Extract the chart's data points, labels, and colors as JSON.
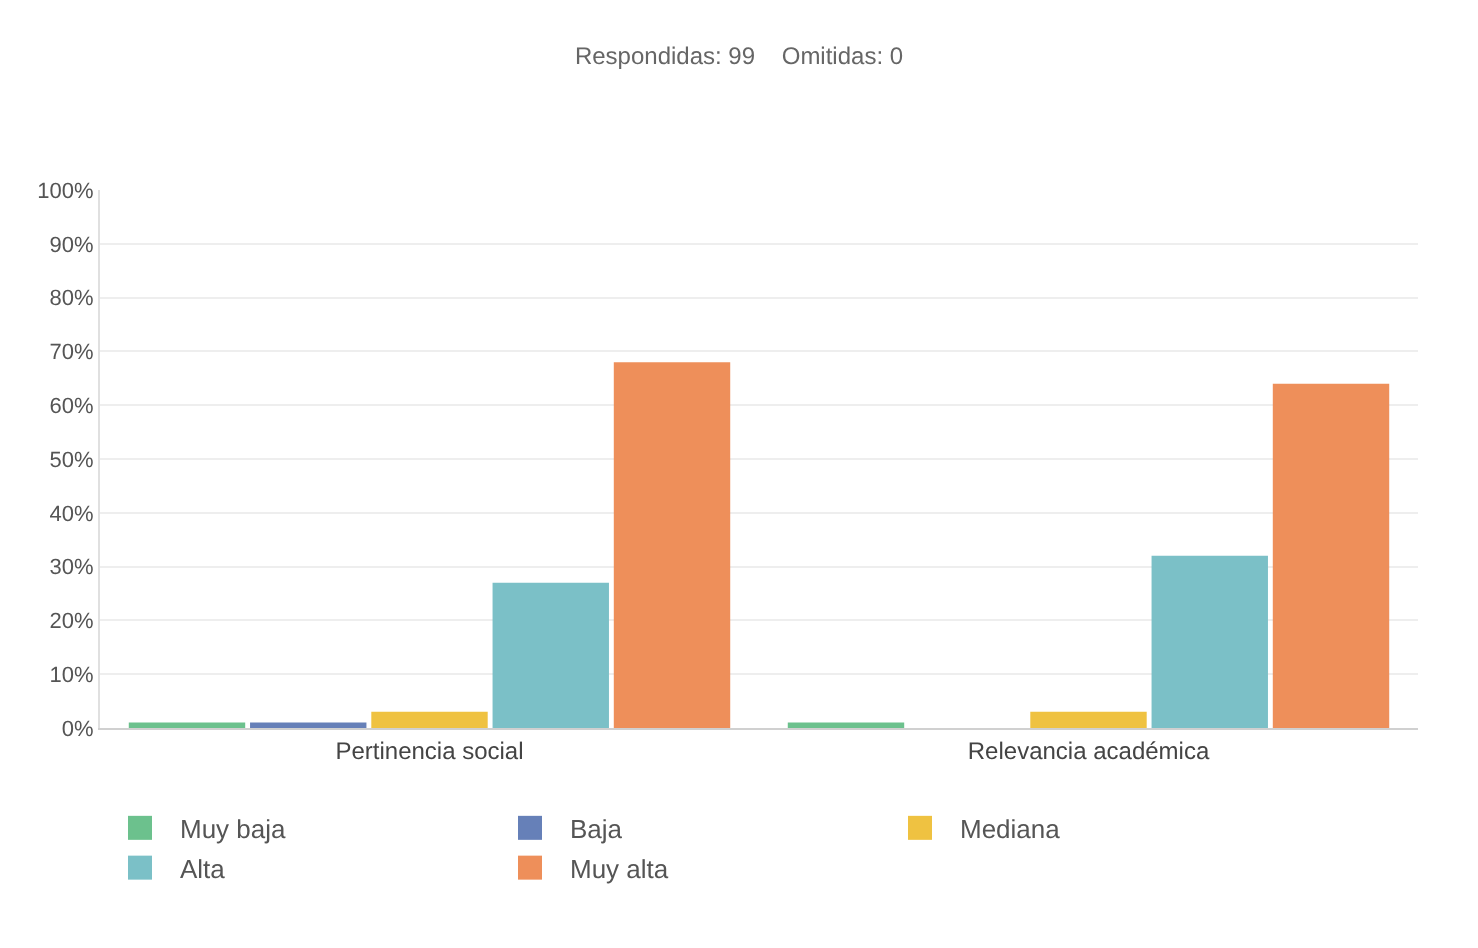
{
  "chart_data": {
    "type": "bar",
    "title": "Respondidas: 99    Omitidas: 0",
    "categories": [
      "Pertinencia social",
      "Relevancia académica"
    ],
    "series": [
      {
        "name": "Muy baja",
        "color": "#6cc18d",
        "values": [
          1,
          1
        ]
      },
      {
        "name": "Baja",
        "color": "#6680b8",
        "values": [
          1,
          0
        ]
      },
      {
        "name": "Mediana",
        "color": "#efc241",
        "values": [
          3,
          3
        ]
      },
      {
        "name": "Alta",
        "color": "#7bc0c7",
        "values": [
          27,
          32
        ]
      },
      {
        "name": "Muy alta",
        "color": "#ee8f5a",
        "values": [
          68,
          64
        ]
      }
    ],
    "ylim": [
      0,
      100
    ],
    "yticks": [
      {
        "value": 0,
        "label": "0%"
      },
      {
        "value": 10,
        "label": "10%"
      },
      {
        "value": 20,
        "label": "20%"
      },
      {
        "value": 30,
        "label": "30%"
      },
      {
        "value": 40,
        "label": "40%"
      },
      {
        "value": 50,
        "label": "50%"
      },
      {
        "value": 60,
        "label": "60%"
      },
      {
        "value": 70,
        "label": "70%"
      },
      {
        "value": 80,
        "label": "80%"
      },
      {
        "value": 90,
        "label": "90%"
      },
      {
        "value": 100,
        "label": "100%"
      }
    ],
    "grid": "y",
    "legend": "bottom"
  }
}
